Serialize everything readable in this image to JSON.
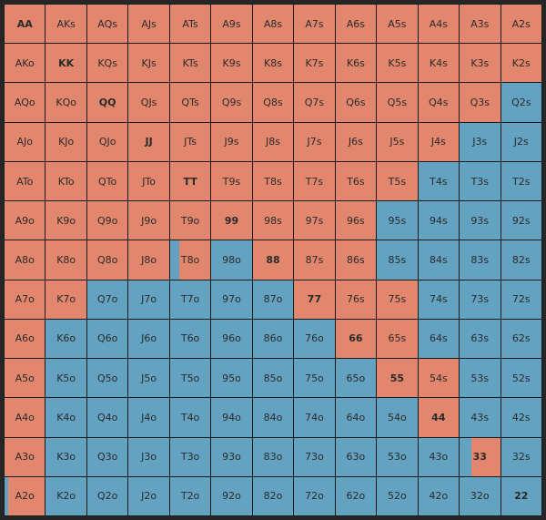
{
  "colors": {
    "raise": "#e2866d",
    "fold": "#64a2c2"
  },
  "pairs": [
    "AA",
    "KK",
    "QQ",
    "JJ",
    "TT",
    "99",
    "88",
    "77",
    "66",
    "55",
    "44",
    "33",
    "22"
  ],
  "rows": [
    [
      {
        "h": "AA",
        "a": "r"
      },
      {
        "h": "AKs",
        "a": "r"
      },
      {
        "h": "AQs",
        "a": "r"
      },
      {
        "h": "AJs",
        "a": "r"
      },
      {
        "h": "ATs",
        "a": "r"
      },
      {
        "h": "A9s",
        "a": "r"
      },
      {
        "h": "A8s",
        "a": "r"
      },
      {
        "h": "A7s",
        "a": "r"
      },
      {
        "h": "A6s",
        "a": "r"
      },
      {
        "h": "A5s",
        "a": "r"
      },
      {
        "h": "A4s",
        "a": "r"
      },
      {
        "h": "A3s",
        "a": "r"
      },
      {
        "h": "A2s",
        "a": "r"
      }
    ],
    [
      {
        "h": "AKo",
        "a": "r"
      },
      {
        "h": "KK",
        "a": "r"
      },
      {
        "h": "KQs",
        "a": "r"
      },
      {
        "h": "KJs",
        "a": "r"
      },
      {
        "h": "KTs",
        "a": "r"
      },
      {
        "h": "K9s",
        "a": "r"
      },
      {
        "h": "K8s",
        "a": "r"
      },
      {
        "h": "K7s",
        "a": "r"
      },
      {
        "h": "K6s",
        "a": "r"
      },
      {
        "h": "K5s",
        "a": "r"
      },
      {
        "h": "K4s",
        "a": "r"
      },
      {
        "h": "K3s",
        "a": "r"
      },
      {
        "h": "K2s",
        "a": "r"
      }
    ],
    [
      {
        "h": "AQo",
        "a": "r"
      },
      {
        "h": "KQo",
        "a": "r"
      },
      {
        "h": "QQ",
        "a": "r"
      },
      {
        "h": "QJs",
        "a": "r"
      },
      {
        "h": "QTs",
        "a": "r"
      },
      {
        "h": "Q9s",
        "a": "r"
      },
      {
        "h": "Q8s",
        "a": "r"
      },
      {
        "h": "Q7s",
        "a": "r"
      },
      {
        "h": "Q6s",
        "a": "r"
      },
      {
        "h": "Q5s",
        "a": "r"
      },
      {
        "h": "Q4s",
        "a": "r"
      },
      {
        "h": "Q3s",
        "a": "r"
      },
      {
        "h": "Q2s",
        "a": "f"
      }
    ],
    [
      {
        "h": "AJo",
        "a": "r"
      },
      {
        "h": "KJo",
        "a": "r"
      },
      {
        "h": "QJo",
        "a": "r"
      },
      {
        "h": "JJ",
        "a": "r"
      },
      {
        "h": "JTs",
        "a": "r"
      },
      {
        "h": "J9s",
        "a": "r"
      },
      {
        "h": "J8s",
        "a": "r"
      },
      {
        "h": "J7s",
        "a": "r"
      },
      {
        "h": "J6s",
        "a": "r"
      },
      {
        "h": "J5s",
        "a": "r"
      },
      {
        "h": "J4s",
        "a": "r"
      },
      {
        "h": "J3s",
        "a": "f"
      },
      {
        "h": "J2s",
        "a": "f"
      }
    ],
    [
      {
        "h": "ATo",
        "a": "r"
      },
      {
        "h": "KTo",
        "a": "r"
      },
      {
        "h": "QTo",
        "a": "r"
      },
      {
        "h": "JTo",
        "a": "r"
      },
      {
        "h": "TT",
        "a": "r"
      },
      {
        "h": "T9s",
        "a": "r"
      },
      {
        "h": "T8s",
        "a": "r"
      },
      {
        "h": "T7s",
        "a": "r"
      },
      {
        "h": "T6s",
        "a": "r"
      },
      {
        "h": "T5s",
        "a": "r"
      },
      {
        "h": "T4s",
        "a": "f"
      },
      {
        "h": "T3s",
        "a": "f"
      },
      {
        "h": "T2s",
        "a": "f"
      }
    ],
    [
      {
        "h": "A9o",
        "a": "r"
      },
      {
        "h": "K9o",
        "a": "r"
      },
      {
        "h": "Q9o",
        "a": "r"
      },
      {
        "h": "J9o",
        "a": "r"
      },
      {
        "h": "T9o",
        "a": "r"
      },
      {
        "h": "99",
        "a": "r"
      },
      {
        "h": "98s",
        "a": "r"
      },
      {
        "h": "97s",
        "a": "r"
      },
      {
        "h": "96s",
        "a": "r"
      },
      {
        "h": "95s",
        "a": "f"
      },
      {
        "h": "94s",
        "a": "f"
      },
      {
        "h": "93s",
        "a": "f"
      },
      {
        "h": "92s",
        "a": "f"
      }
    ],
    [
      {
        "h": "A8o",
        "a": "r"
      },
      {
        "h": "K8o",
        "a": "r"
      },
      {
        "h": "Q8o",
        "a": "r"
      },
      {
        "h": "J8o",
        "a": "r"
      },
      {
        "h": "T8o",
        "a": "s",
        "fold": 0.22
      },
      {
        "h": "98o",
        "a": "f"
      },
      {
        "h": "88",
        "a": "r"
      },
      {
        "h": "87s",
        "a": "r"
      },
      {
        "h": "86s",
        "a": "r"
      },
      {
        "h": "85s",
        "a": "f"
      },
      {
        "h": "84s",
        "a": "f"
      },
      {
        "h": "83s",
        "a": "f"
      },
      {
        "h": "82s",
        "a": "f"
      }
    ],
    [
      {
        "h": "A7o",
        "a": "r"
      },
      {
        "h": "K7o",
        "a": "r"
      },
      {
        "h": "Q7o",
        "a": "f"
      },
      {
        "h": "J7o",
        "a": "f"
      },
      {
        "h": "T7o",
        "a": "f"
      },
      {
        "h": "97o",
        "a": "f"
      },
      {
        "h": "87o",
        "a": "f"
      },
      {
        "h": "77",
        "a": "r"
      },
      {
        "h": "76s",
        "a": "r"
      },
      {
        "h": "75s",
        "a": "r"
      },
      {
        "h": "74s",
        "a": "f"
      },
      {
        "h": "73s",
        "a": "f"
      },
      {
        "h": "72s",
        "a": "f"
      }
    ],
    [
      {
        "h": "A6o",
        "a": "r"
      },
      {
        "h": "K6o",
        "a": "f"
      },
      {
        "h": "Q6o",
        "a": "f"
      },
      {
        "h": "J6o",
        "a": "f"
      },
      {
        "h": "T6o",
        "a": "f"
      },
      {
        "h": "96o",
        "a": "f"
      },
      {
        "h": "86o",
        "a": "f"
      },
      {
        "h": "76o",
        "a": "f"
      },
      {
        "h": "66",
        "a": "r"
      },
      {
        "h": "65s",
        "a": "r"
      },
      {
        "h": "64s",
        "a": "f"
      },
      {
        "h": "63s",
        "a": "f"
      },
      {
        "h": "62s",
        "a": "f"
      }
    ],
    [
      {
        "h": "A5o",
        "a": "r"
      },
      {
        "h": "K5o",
        "a": "f"
      },
      {
        "h": "Q5o",
        "a": "f"
      },
      {
        "h": "J5o",
        "a": "f"
      },
      {
        "h": "T5o",
        "a": "f"
      },
      {
        "h": "95o",
        "a": "f"
      },
      {
        "h": "85o",
        "a": "f"
      },
      {
        "h": "75o",
        "a": "f"
      },
      {
        "h": "65o",
        "a": "f"
      },
      {
        "h": "55",
        "a": "r"
      },
      {
        "h": "54s",
        "a": "r"
      },
      {
        "h": "53s",
        "a": "f"
      },
      {
        "h": "52s",
        "a": "f"
      }
    ],
    [
      {
        "h": "A4o",
        "a": "r"
      },
      {
        "h": "K4o",
        "a": "f"
      },
      {
        "h": "Q4o",
        "a": "f"
      },
      {
        "h": "J4o",
        "a": "f"
      },
      {
        "h": "T4o",
        "a": "f"
      },
      {
        "h": "94o",
        "a": "f"
      },
      {
        "h": "84o",
        "a": "f"
      },
      {
        "h": "74o",
        "a": "f"
      },
      {
        "h": "64o",
        "a": "f"
      },
      {
        "h": "54o",
        "a": "f"
      },
      {
        "h": "44",
        "a": "r"
      },
      {
        "h": "43s",
        "a": "f"
      },
      {
        "h": "42s",
        "a": "f"
      }
    ],
    [
      {
        "h": "A3o",
        "a": "r"
      },
      {
        "h": "K3o",
        "a": "f"
      },
      {
        "h": "Q3o",
        "a": "f"
      },
      {
        "h": "J3o",
        "a": "f"
      },
      {
        "h": "T3o",
        "a": "f"
      },
      {
        "h": "93o",
        "a": "f"
      },
      {
        "h": "83o",
        "a": "f"
      },
      {
        "h": "73o",
        "a": "f"
      },
      {
        "h": "63o",
        "a": "f"
      },
      {
        "h": "53o",
        "a": "f"
      },
      {
        "h": "43o",
        "a": "f"
      },
      {
        "h": "33",
        "a": "s",
        "fold": 0.3
      },
      {
        "h": "32s",
        "a": "f"
      }
    ],
    [
      {
        "h": "A2o",
        "a": "s",
        "fold": 0.1
      },
      {
        "h": "K2o",
        "a": "f"
      },
      {
        "h": "Q2o",
        "a": "f"
      },
      {
        "h": "J2o",
        "a": "f"
      },
      {
        "h": "T2o",
        "a": "f"
      },
      {
        "h": "92o",
        "a": "f"
      },
      {
        "h": "82o",
        "a": "f"
      },
      {
        "h": "72o",
        "a": "f"
      },
      {
        "h": "62o",
        "a": "f"
      },
      {
        "h": "52o",
        "a": "f"
      },
      {
        "h": "42o",
        "a": "f"
      },
      {
        "h": "32o",
        "a": "f"
      },
      {
        "h": "22",
        "a": "f"
      }
    ]
  ]
}
